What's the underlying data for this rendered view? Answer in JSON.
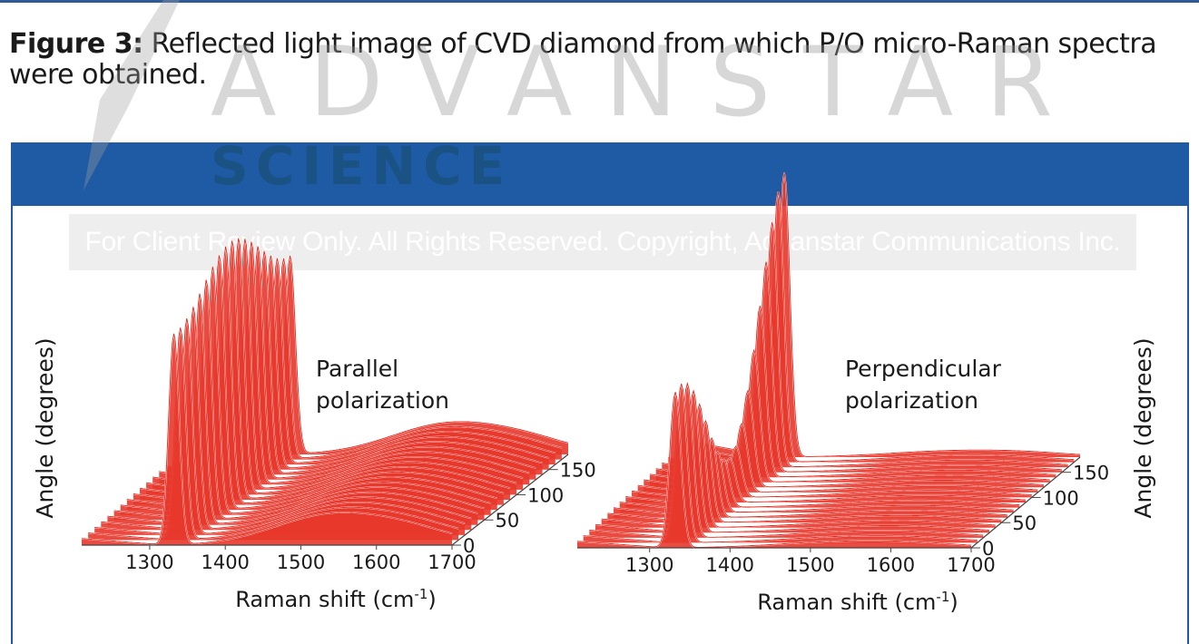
{
  "caption": {
    "label": "Figure 3:",
    "text": " Reflected light image of CVD diamond from which P/O micro-Raman spectra were obtained."
  },
  "watermark": {
    "brand": "ADVANSTAR",
    "sub": "SCIENCE",
    "notice": "For Client Review Only. All Rights Reserved. Copyright, Advanstar Communications Inc."
  },
  "colors": {
    "header": "#1f5aa4",
    "trace": "#e0281e",
    "fill": "#e8372b"
  },
  "chart_data": [
    {
      "type": "line",
      "label": "Parallel polarization",
      "label_lines": [
        "Parallel",
        "polarization"
      ],
      "xlabel": "Raman shift (cm-1)",
      "ylabel": "Angle (degrees)",
      "x_ticks": [
        "1300",
        "1400",
        "1500",
        "1600",
        "1700"
      ],
      "angle_ticks": [
        "0",
        "50",
        "100",
        "150"
      ],
      "xlim": [
        1210,
        1700
      ],
      "angle_range": [
        0,
        180
      ],
      "angle_step": 10,
      "peaks": [
        {
          "center": 1332,
          "width": 7,
          "height_at_0": 0.66,
          "height_at_180": 0.62,
          "modulation": 0.1,
          "phase": 0
        },
        {
          "center": 1333,
          "width": 7,
          "height_at_0": 0.3,
          "height_at_180": 0.28,
          "modulation": 0.85,
          "phase": 90
        }
      ],
      "background": [
        {
          "center": 1540,
          "width": 75,
          "height": 0.1
        },
        {
          "center": 1650,
          "width": 60,
          "height": 0.04
        }
      ]
    },
    {
      "type": "line",
      "label": "Perpendicular polarization",
      "label_lines": [
        "Perpendicular",
        "polarization"
      ],
      "xlabel": "Raman shift (cm-1)",
      "ylabel": "Angle (degrees)",
      "x_ticks": [
        "1300",
        "1400",
        "1500",
        "1600",
        "1700"
      ],
      "angle_ticks": [
        "0",
        "50",
        "100",
        "150"
      ],
      "xlim": [
        1210,
        1700
      ],
      "angle_range": [
        0,
        180
      ],
      "angle_step": 10,
      "peaks": [
        {
          "center": 1332,
          "width": 7,
          "height_at_0": 0.52,
          "height_at_180": 0.95,
          "modulation": 0.8,
          "phase": 0
        }
      ],
      "background": [
        {
          "center": 1540,
          "width": 80,
          "height": 0.02
        },
        {
          "center": 1640,
          "width": 60,
          "height": 0.01
        }
      ]
    }
  ]
}
